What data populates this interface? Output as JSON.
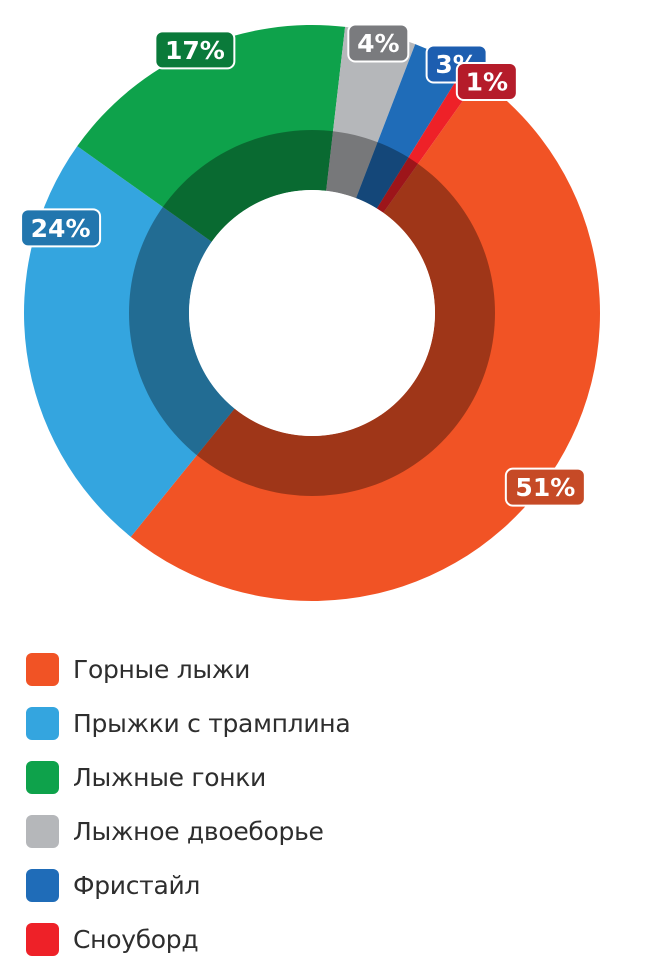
{
  "chart_data": {
    "type": "pie",
    "title": "",
    "categories": [
      "Горные лыжи",
      "Прыжки с трамплина",
      "Лыжные гонки",
      "Лыжное двоеборье",
      "Фристайл",
      "Сноуборд"
    ],
    "values": [
      51,
      24,
      17,
      4,
      3,
      1
    ],
    "value_labels": [
      "51%",
      "24%",
      "17%",
      "4%",
      "3%",
      "1%"
    ],
    "colors": [
      "#f15325",
      "#34a5df",
      "#0ea24b",
      "#b5b7ba",
      "#1f6cb8",
      "#ee2128"
    ],
    "label_colors": [
      "#c64a26",
      "#2276ae",
      "#0a7a3a",
      "#7a7b7e",
      "#1d5eb0",
      "#b51c2a"
    ],
    "donut": true,
    "legend_position": "bottom"
  }
}
